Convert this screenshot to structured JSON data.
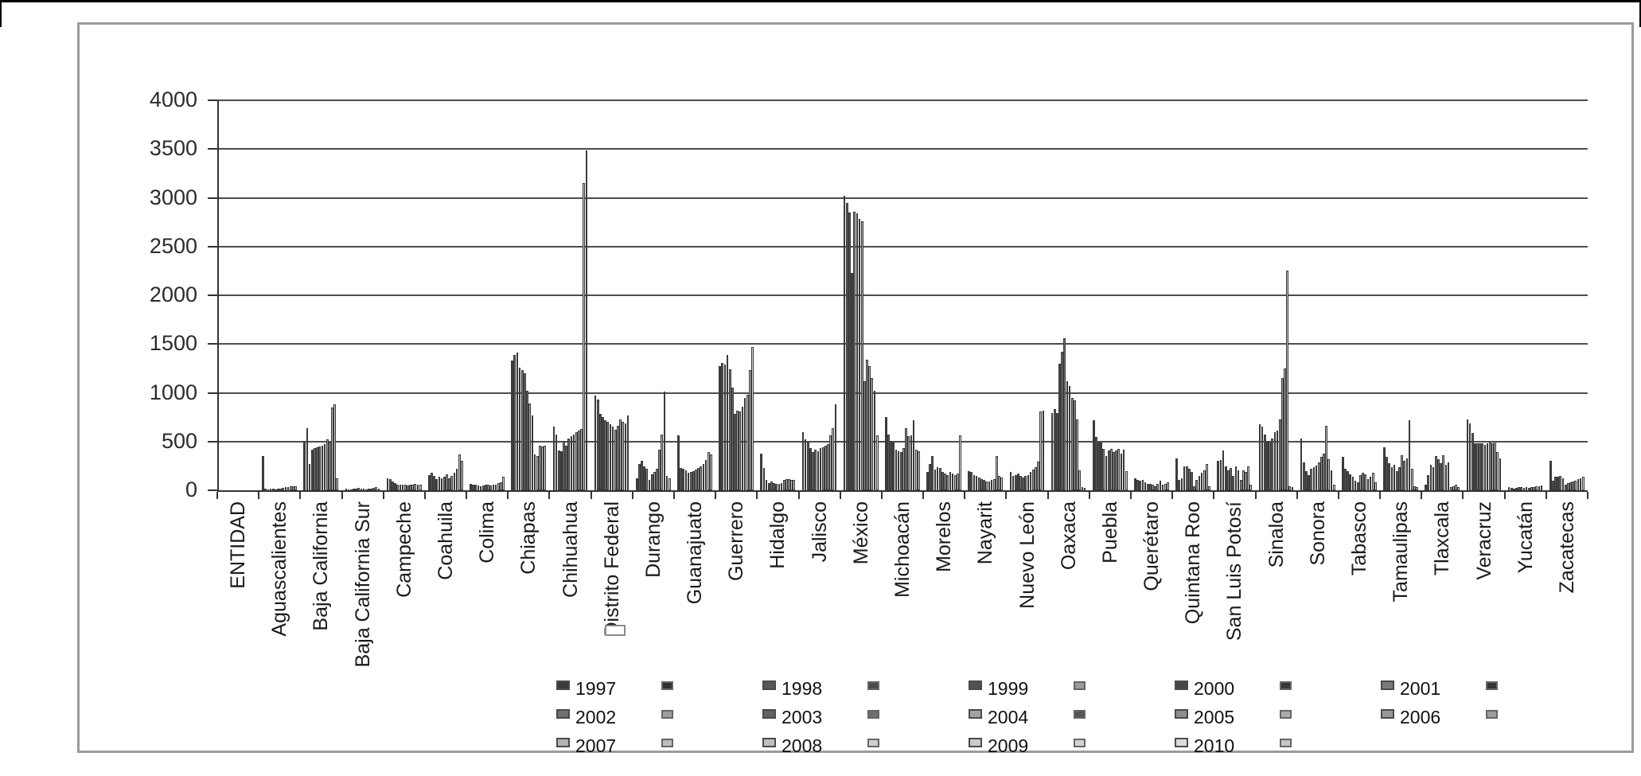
{
  "chart_data": {
    "type": "bar",
    "title": "",
    "xlabel": "",
    "ylabel": "",
    "ylim": [
      0,
      4000
    ],
    "yticks": [
      "0",
      "500",
      "1000",
      "1500",
      "2000",
      "2500",
      "3000",
      "3500",
      "4000"
    ],
    "grid": "horizontal",
    "legend_position": "bottom",
    "years": [
      {
        "label": "1997",
        "color": "#3c3c3c",
        "swatch2": "#303030"
      },
      {
        "label": "1998",
        "color": "#585858",
        "swatch2": "#4a4a4a"
      },
      {
        "label": "1999",
        "color": "#515151",
        "swatch2": "#9a9a9a"
      },
      {
        "label": "2000",
        "color": "#454545",
        "swatch2": "#383838"
      },
      {
        "label": "2001",
        "color": "#7a7a7a",
        "swatch2": "#343434"
      },
      {
        "label": "2002",
        "color": "#6f6f6f",
        "swatch2": "#9e9e9e"
      },
      {
        "label": "2003",
        "color": "#636363",
        "swatch2": "#6e6e6e"
      },
      {
        "label": "2004",
        "color": "#a3a3a3",
        "swatch2": "#565656"
      },
      {
        "label": "2005",
        "color": "#8d8d8d",
        "swatch2": "#ababab"
      },
      {
        "label": "2006",
        "color": "#989898",
        "swatch2": "#9c9c9c"
      },
      {
        "label": "2007",
        "color": "#b4b4b4",
        "swatch2": "#bdbdbd"
      },
      {
        "label": "2008",
        "color": "#c0c0c0",
        "swatch2": "#cfcfcf"
      },
      {
        "label": "2009",
        "color": "#cbcbcb",
        "swatch2": "#d4d4d4"
      },
      {
        "label": "2010",
        "color": "#dcdcdc",
        "swatch2": "#c6c6c6"
      }
    ],
    "legend_rows": [
      [
        0,
        1,
        2,
        3,
        4
      ],
      [
        5,
        6,
        7,
        8,
        9
      ],
      [
        10,
        11,
        12,
        13
      ]
    ],
    "series": [
      {
        "name": "ENTIDAD",
        "values": [
          0,
          0,
          0,
          0,
          0,
          0,
          0,
          0,
          0,
          0,
          0,
          0,
          0,
          0
        ]
      },
      {
        "name": "Aguascalientes",
        "values": [
          350,
          20,
          10,
          15,
          15,
          10,
          15,
          20,
          25,
          30,
          35,
          40,
          45,
          40
        ]
      },
      {
        "name": "Baja California",
        "values": [
          500,
          640,
          270,
          420,
          430,
          440,
          450,
          460,
          470,
          520,
          490,
          850,
          880,
          120
        ]
      },
      {
        "name": "Baja California Sur",
        "values": [
          15,
          10,
          10,
          15,
          20,
          25,
          20,
          15,
          10,
          15,
          20,
          25,
          30,
          20
        ]
      },
      {
        "name": "Campeche",
        "values": [
          120,
          115,
          90,
          70,
          60,
          55,
          60,
          55,
          50,
          60,
          55,
          65,
          55,
          60
        ]
      },
      {
        "name": "Coahuila",
        "values": [
          155,
          180,
          145,
          115,
          140,
          120,
          140,
          165,
          120,
          145,
          180,
          220,
          370,
          300
        ]
      },
      {
        "name": "Colima",
        "values": [
          65,
          60,
          55,
          50,
          45,
          50,
          55,
          60,
          50,
          55,
          60,
          70,
          80,
          140
        ]
      },
      {
        "name": "Chiapas",
        "values": [
          1330,
          1390,
          1410,
          1260,
          1230,
          1200,
          1020,
          890,
          770,
          370,
          350,
          460,
          450,
          460
        ]
      },
      {
        "name": "Chihuahua",
        "values": [
          650,
          570,
          405,
          400,
          510,
          455,
          530,
          555,
          570,
          595,
          610,
          625,
          3150,
          3490
        ]
      },
      {
        "name": "Distrito Federal",
        "values": [
          970,
          935,
          780,
          755,
          720,
          700,
          680,
          650,
          620,
          660,
          730,
          700,
          685,
          765
        ]
      },
      {
        "name": "Durango",
        "values": [
          120,
          270,
          300,
          245,
          220,
          105,
          165,
          190,
          220,
          420,
          570,
          1015,
          150,
          120
        ]
      },
      {
        "name": "Guanajuato",
        "values": [
          560,
          230,
          220,
          205,
          180,
          190,
          195,
          210,
          230,
          245,
          270,
          310,
          390,
          365
        ]
      },
      {
        "name": "Guerrero",
        "values": [
          1270,
          1310,
          1290,
          1390,
          1240,
          1050,
          780,
          820,
          805,
          860,
          945,
          980,
          1230,
          1470
        ]
      },
      {
        "name": "Hidalgo",
        "values": [
          375,
          230,
          105,
          75,
          90,
          75,
          65,
          65,
          75,
          105,
          115,
          115,
          105,
          105
        ]
      },
      {
        "name": "Jalisco",
        "values": [
          600,
          520,
          495,
          430,
          390,
          415,
          400,
          430,
          440,
          455,
          470,
          560,
          640,
          880
        ]
      },
      {
        "name": "México",
        "values": [
          3020,
          2950,
          2850,
          2230,
          2860,
          2840,
          2780,
          2760,
          1120,
          1340,
          1270,
          1150,
          1020,
          560
        ]
      },
      {
        "name": "Michoacán",
        "values": [
          755,
          575,
          510,
          495,
          415,
          400,
          390,
          430,
          640,
          555,
          560,
          715,
          415,
          400
        ]
      },
      {
        "name": "Morelos",
        "values": [
          190,
          270,
          350,
          210,
          235,
          230,
          190,
          170,
          155,
          190,
          170,
          155,
          170,
          560
        ]
      },
      {
        "name": "Nayarit",
        "values": [
          195,
          185,
          155,
          145,
          130,
          115,
          105,
          90,
          90,
          105,
          115,
          350,
          145,
          130
        ]
      },
      {
        "name": "Nuevo León",
        "values": [
          190,
          145,
          155,
          170,
          145,
          130,
          145,
          155,
          190,
          210,
          235,
          295,
          805,
          820
        ]
      },
      {
        "name": "Oaxaca",
        "values": [
          790,
          830,
          790,
          1300,
          1420,
          1560,
          1120,
          1070,
          950,
          920,
          730,
          205,
          30,
          25
        ]
      },
      {
        "name": "Puebla",
        "values": [
          715,
          545,
          490,
          490,
          425,
          350,
          405,
          425,
          390,
          405,
          425,
          380,
          415,
          200
        ]
      },
      {
        "name": "Querétaro",
        "values": [
          120,
          105,
          95,
          105,
          80,
          65,
          65,
          55,
          40,
          65,
          95,
          55,
          65,
          80
        ]
      },
      {
        "name": "Quintana Roo",
        "values": [
          325,
          105,
          120,
          245,
          245,
          220,
          190,
          40,
          105,
          145,
          180,
          205,
          270,
          40
        ]
      },
      {
        "name": "San Luis Potosí",
        "values": [
          300,
          310,
          405,
          245,
          205,
          230,
          145,
          245,
          205,
          105,
          205,
          190,
          245,
          55
        ]
      },
      {
        "name": "Sinaloa",
        "values": [
          680,
          650,
          570,
          505,
          505,
          530,
          600,
          610,
          730,
          1150,
          1250,
          2250,
          45,
          35
        ]
      },
      {
        "name": "Sonora",
        "values": [
          530,
          285,
          195,
          155,
          220,
          235,
          250,
          285,
          340,
          380,
          665,
          315,
          205,
          55
        ]
      },
      {
        "name": "Tabasco",
        "values": [
          340,
          220,
          195,
          165,
          140,
          100,
          80,
          155,
          180,
          165,
          115,
          140,
          180,
          80
        ]
      },
      {
        "name": "Tamaulipas",
        "values": [
          445,
          340,
          275,
          235,
          260,
          195,
          235,
          360,
          300,
          325,
          715,
          220,
          45,
          35
        ]
      },
      {
        "name": "Tlaxcala",
        "values": [
          55,
          155,
          260,
          235,
          355,
          315,
          275,
          360,
          260,
          285,
          35,
          40,
          55,
          35
        ]
      },
      {
        "name": "Veracruz",
        "values": [
          730,
          690,
          585,
          480,
          480,
          480,
          480,
          465,
          485,
          490,
          480,
          505,
          395,
          330
        ]
      },
      {
        "name": "Yucatán",
        "values": [
          30,
          25,
          20,
          25,
          30,
          35,
          25,
          30,
          25,
          35,
          30,
          40,
          45,
          50
        ]
      },
      {
        "name": "Zacatecas",
        "values": [
          300,
          100,
          140,
          140,
          145,
          120,
          55,
          75,
          80,
          90,
          100,
          115,
          120,
          140
        ]
      }
    ]
  }
}
